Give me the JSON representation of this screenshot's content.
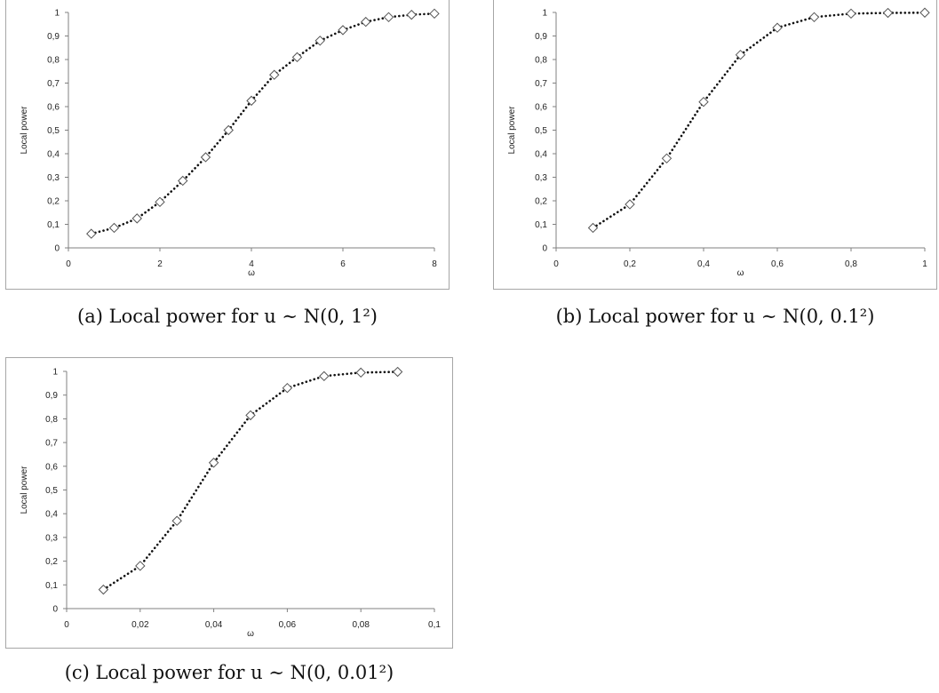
{
  "chart_data": [
    {
      "type": "line",
      "xlabel": "ω",
      "ylabel": "Local power",
      "xlim": [
        0,
        8
      ],
      "ylim": [
        0,
        1
      ],
      "xticks": [
        "0",
        "2",
        "4",
        "6",
        "8"
      ],
      "yticks": [
        "0",
        "0,1",
        "0,2",
        "0,3",
        "0,4",
        "0,5",
        "0,6",
        "0,7",
        "0,8",
        "0,9",
        "1"
      ],
      "series": [
        {
          "x": [
            0.5,
            1,
            1.5,
            2,
            2.5,
            3,
            3.5,
            4,
            4.5,
            5,
            5.5,
            6,
            6.5,
            7,
            7.5,
            8
          ],
          "y": [
            0.06,
            0.085,
            0.125,
            0.195,
            0.285,
            0.385,
            0.5,
            0.625,
            0.735,
            0.81,
            0.88,
            0.925,
            0.96,
            0.98,
            0.99,
            0.995
          ]
        }
      ],
      "caption": "(a)  Local power for  u ∼ N(0, 1²)",
      "grid": false,
      "marker": "diamond",
      "line_style": "dotted"
    },
    {
      "type": "line",
      "xlabel": "ω",
      "ylabel": "Local power",
      "xlim": [
        0,
        1
      ],
      "ylim": [
        0,
        1
      ],
      "xticks": [
        "0",
        "0,2",
        "0,4",
        "0,6",
        "0,8",
        "1"
      ],
      "yticks": [
        "0",
        "0,1",
        "0,2",
        "0,3",
        "0,4",
        "0,5",
        "0,6",
        "0,7",
        "0,8",
        "0,9",
        "1"
      ],
      "series": [
        {
          "x": [
            0.1,
            0.2,
            0.3,
            0.4,
            0.5,
            0.6,
            0.7,
            0.8,
            0.9,
            1.0
          ],
          "y": [
            0.085,
            0.185,
            0.38,
            0.62,
            0.82,
            0.935,
            0.98,
            0.995,
            0.998,
            0.999
          ]
        }
      ],
      "caption": "(b)  Local power for  u ∼ N(0, 0.1²)",
      "grid": false,
      "marker": "diamond",
      "line_style": "dotted"
    },
    {
      "type": "line",
      "xlabel": "ω",
      "ylabel": "Local power",
      "xlim": [
        0,
        0.1
      ],
      "ylim": [
        0,
        1
      ],
      "xticks": [
        "0",
        "0,02",
        "0,04",
        "0,06",
        "0,08",
        "0,1"
      ],
      "yticks": [
        "0",
        "0,1",
        "0,2",
        "0,3",
        "0,4",
        "0,5",
        "0,6",
        "0,7",
        "0,8",
        "0,9",
        "1"
      ],
      "series": [
        {
          "x": [
            0.01,
            0.02,
            0.03,
            0.04,
            0.05,
            0.06,
            0.07,
            0.08,
            0.09
          ],
          "y": [
            0.08,
            0.18,
            0.37,
            0.615,
            0.815,
            0.93,
            0.98,
            0.995,
            0.998
          ]
        }
      ],
      "caption": "(c)  Local power for u ∼ N(0, 0.01²)",
      "grid": false,
      "marker": "diamond",
      "line_style": "dotted"
    }
  ]
}
